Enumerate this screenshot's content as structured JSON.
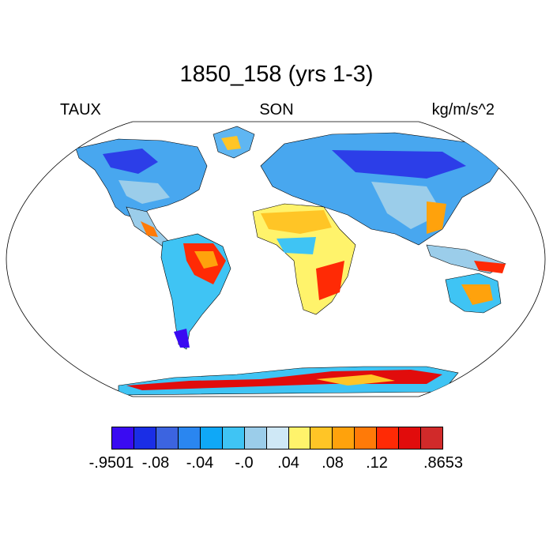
{
  "title": "1850_158 (yrs 1-3)",
  "left_label": "TAUX",
  "center_label": "SON",
  "right_label": "kg/m/s^2",
  "colorbar": {
    "colors": [
      "#3a0bf2",
      "#1a2ee6",
      "#3c64e0",
      "#2a86f0",
      "#0fa8f7",
      "#3fc4f4",
      "#9bcdea",
      "#cfe8f6",
      "#fff36b",
      "#ffc526",
      "#ffa20c",
      "#ff7a08",
      "#ff2a05",
      "#e10c0c",
      "#d12a2a"
    ],
    "tick_labels": [
      "-.9501",
      "-.08",
      "-.04",
      "-.0",
      ".04",
      ".08",
      ".12",
      ".8653"
    ]
  }
}
